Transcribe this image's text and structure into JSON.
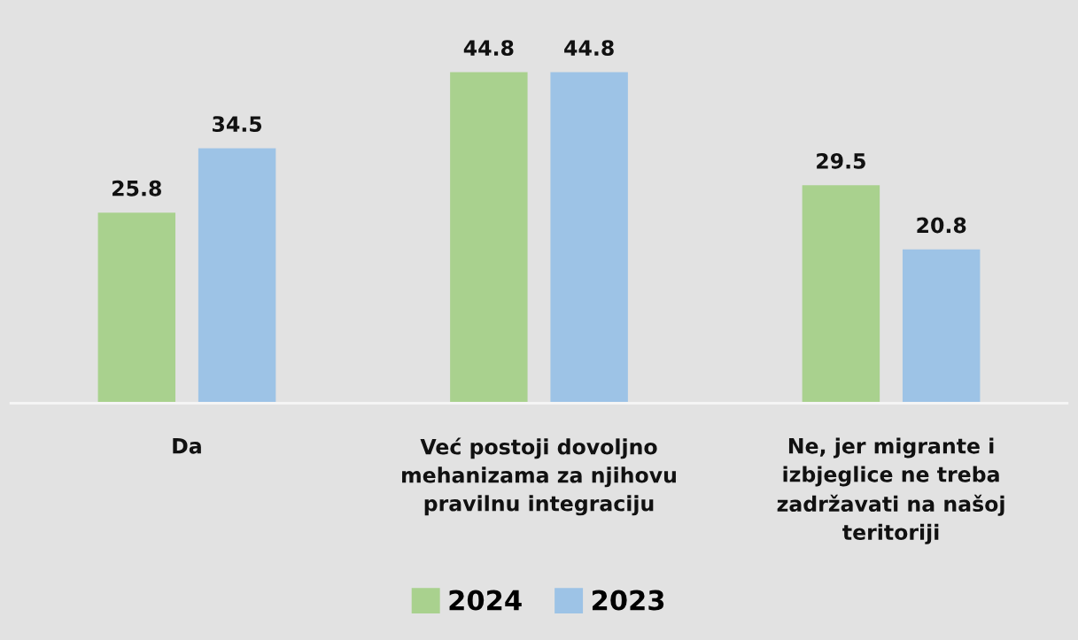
{
  "chart_data": {
    "type": "bar",
    "categories": [
      "Da",
      "Već postoji dovoljno\nmehanizama za njihovu\npravilnu integraciju",
      "Ne, jer migrante i\nizbjeglice ne treba\nzadržavati na našoj\nteritoriji"
    ],
    "series": [
      {
        "name": "2024",
        "color": "#a9d18e",
        "values": [
          25.8,
          44.8,
          29.5
        ]
      },
      {
        "name": "2023",
        "color": "#9dc3e6",
        "values": [
          34.5,
          44.8,
          20.8
        ]
      }
    ],
    "data_labels": true,
    "legend": "bottom",
    "grid": false
  }
}
